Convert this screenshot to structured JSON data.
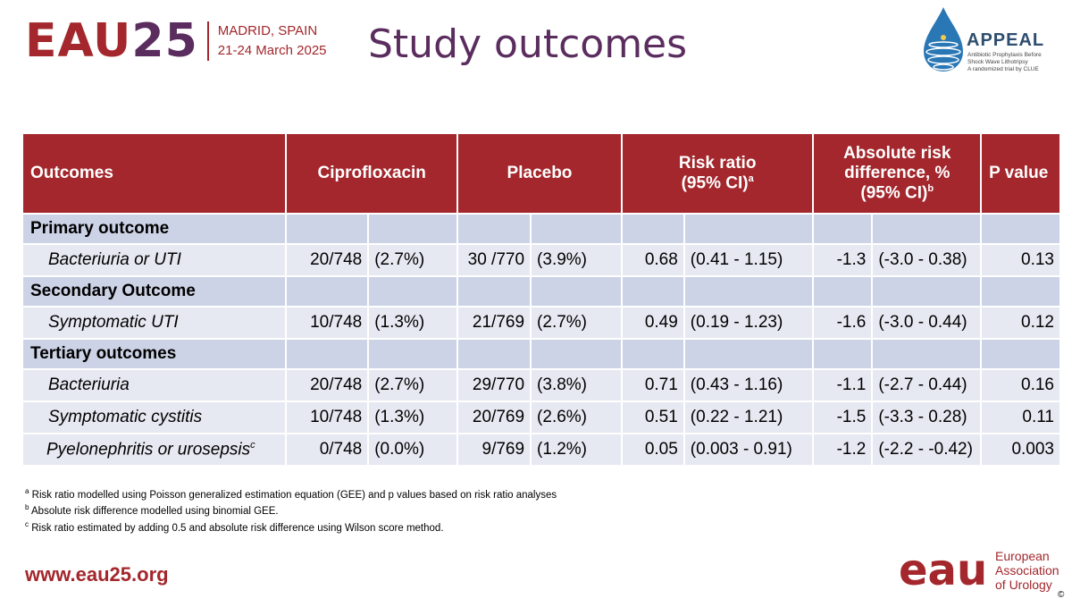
{
  "header": {
    "logo_main": "EAU",
    "logo_num": "25",
    "location": "MADRID, SPAIN",
    "dates": "21-24 March 2025",
    "title": "Study outcomes",
    "appeal_name": "APPEAL",
    "appeal_line1": "Antibiotic Prophylaxis Before",
    "appeal_line2": "Shock Wave Lithotripsy",
    "appeal_line3": "A randomized trial by CLUE"
  },
  "table": {
    "headers": {
      "outcomes": "Outcomes",
      "cipro": "Ciprofloxacin",
      "placebo": "Placebo",
      "rr_line1": "Risk ratio",
      "rr_line2": "(95% CI)",
      "rr_sup": "a",
      "ard_line1": "Absolute risk",
      "ard_line2": "difference, %",
      "ard_line3": "(95% CI)",
      "ard_sup": "b",
      "pvalue": "P value"
    },
    "sections": [
      {
        "label": "Primary outcome",
        "rows": [
          {
            "label": "Bacteriuria or UTI",
            "sup": "",
            "cipro_n": "20/748",
            "cipro_pct": "(2.7%)",
            "plac_n": "30 /770",
            "plac_pct": "(3.9%)",
            "rr": "0.68",
            "rr_ci": "(0.41 - 1.15)",
            "ard": "-1.3",
            "ard_ci": "(-3.0 - 0.38)",
            "p": "0.13"
          }
        ]
      },
      {
        "label": "Secondary Outcome",
        "rows": [
          {
            "label": "Symptomatic UTI",
            "sup": "",
            "cipro_n": "10/748",
            "cipro_pct": "(1.3%)",
            "plac_n": "21/769",
            "plac_pct": "(2.7%)",
            "rr": "0.49",
            "rr_ci": "(0.19 - 1.23)",
            "ard": "-1.6",
            "ard_ci": "(-3.0 - 0.44)",
            "p": "0.12"
          }
        ]
      },
      {
        "label": "Tertiary outcomes",
        "rows": [
          {
            "label": "Bacteriuria",
            "sup": "",
            "cipro_n": "20/748",
            "cipro_pct": "(2.7%)",
            "plac_n": "29/770",
            "plac_pct": "(3.8%)",
            "rr": "0.71",
            "rr_ci": "(0.43 - 1.16)",
            "ard": "-1.1",
            "ard_ci": "(-2.7 - 0.44)",
            "p": "0.16"
          },
          {
            "label": "Symptomatic cystitis",
            "sup": "",
            "cipro_n": "10/748",
            "cipro_pct": "(1.3%)",
            "plac_n": "20/769",
            "plac_pct": "(2.6%)",
            "rr": "0.51",
            "rr_ci": "(0.22 - 1.21)",
            "ard": "-1.5",
            "ard_ci": "(-3.3 - 0.28)",
            "p": "0.11"
          },
          {
            "label": "Pyelonephritis or urosepsis",
            "sup": "c",
            "cipro_n": "0/748",
            "cipro_pct": "(0.0%)",
            "plac_n": "9/769",
            "plac_pct": "(1.2%)",
            "rr": "0.05",
            "rr_ci": "(0.003 - 0.91)",
            "ard": "-1.2",
            "ard_ci": "(-2.2 - -0.42)",
            "p": "0.003"
          }
        ]
      }
    ]
  },
  "footnotes": [
    {
      "sup": "a",
      "text": "Risk ratio modelled using Poisson generalized estimation equation (GEE) and p values based on risk ratio analyses"
    },
    {
      "sup": "b",
      "text": "Absolute risk difference modelled using binomial GEE."
    },
    {
      "sup": "c",
      "text": "Risk ratio estimated by adding 0.5 and absolute risk difference using Wilson score method."
    }
  ],
  "footer": {
    "website": "www.eau25.org",
    "eau_logo_text": "eau",
    "eau_line1": "European",
    "eau_line2": "Association",
    "eau_line3": "of Urology",
    "copyright": "©"
  },
  "colors": {
    "brand_red": "#a3272c",
    "brand_purple": "#5a2d5e",
    "section_row": "#cdd3e6",
    "data_row": "#e7e9f2"
  }
}
